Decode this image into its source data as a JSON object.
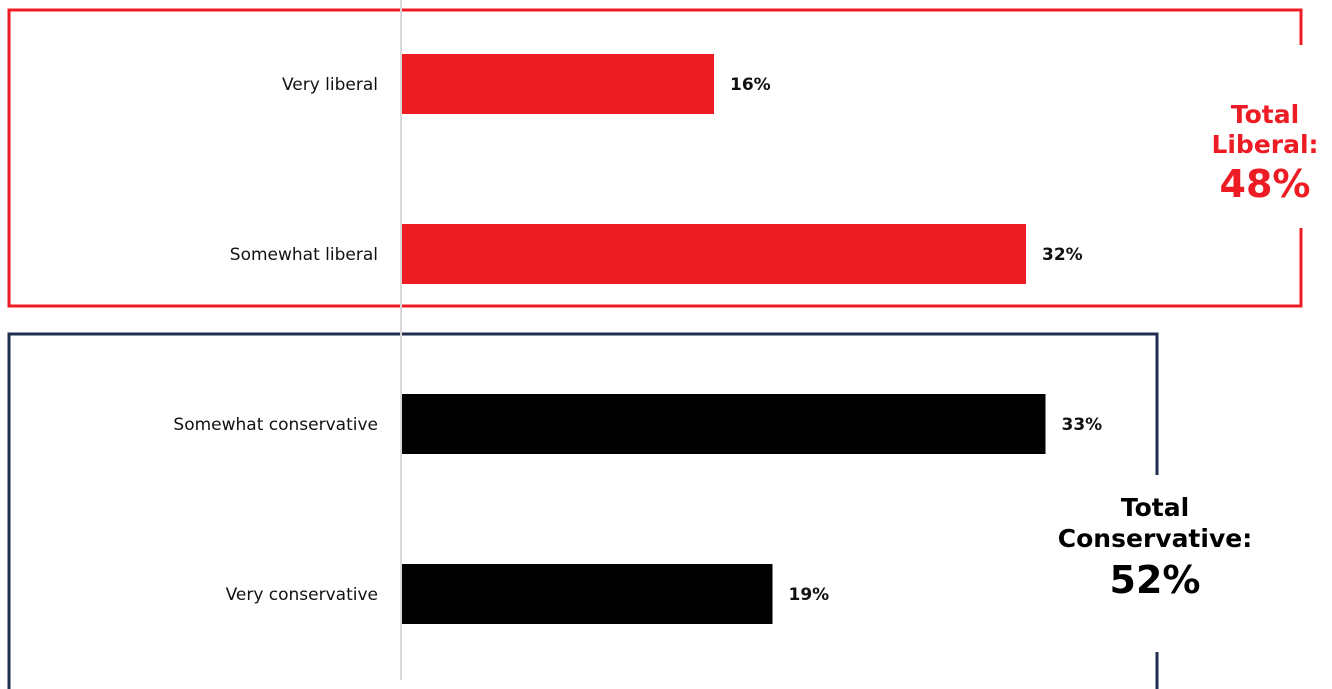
{
  "chart_data": {
    "type": "bar",
    "orientation": "horizontal",
    "categories": [
      "Very liberal",
      "Somewhat liberal",
      "Somewhat conservative",
      "Very conservative"
    ],
    "values": [
      16,
      32,
      33,
      19
    ],
    "value_labels": [
      "16%",
      "32%",
      "33%",
      "19%"
    ],
    "colors": [
      "#ed1c24",
      "#ed1c24",
      "#000000",
      "#000000"
    ],
    "xlim": [
      0,
      40
    ],
    "groups": [
      {
        "name": "Total Liberal",
        "categories": [
          "Very liberal",
          "Somewhat liberal"
        ],
        "color": "#ed1c24"
      },
      {
        "name": "Total Conservative",
        "categories": [
          "Somewhat conservative",
          "Very conservative"
        ],
        "color": "#1f2d4e"
      }
    ]
  },
  "totals": {
    "liberal": {
      "line1": "Total",
      "line2": "Liberal:",
      "value": "48%",
      "color": "#ed1c24"
    },
    "conservative": {
      "line1": "Total",
      "line2": "Conservative:",
      "value": "52%",
      "color": "#000000"
    }
  }
}
